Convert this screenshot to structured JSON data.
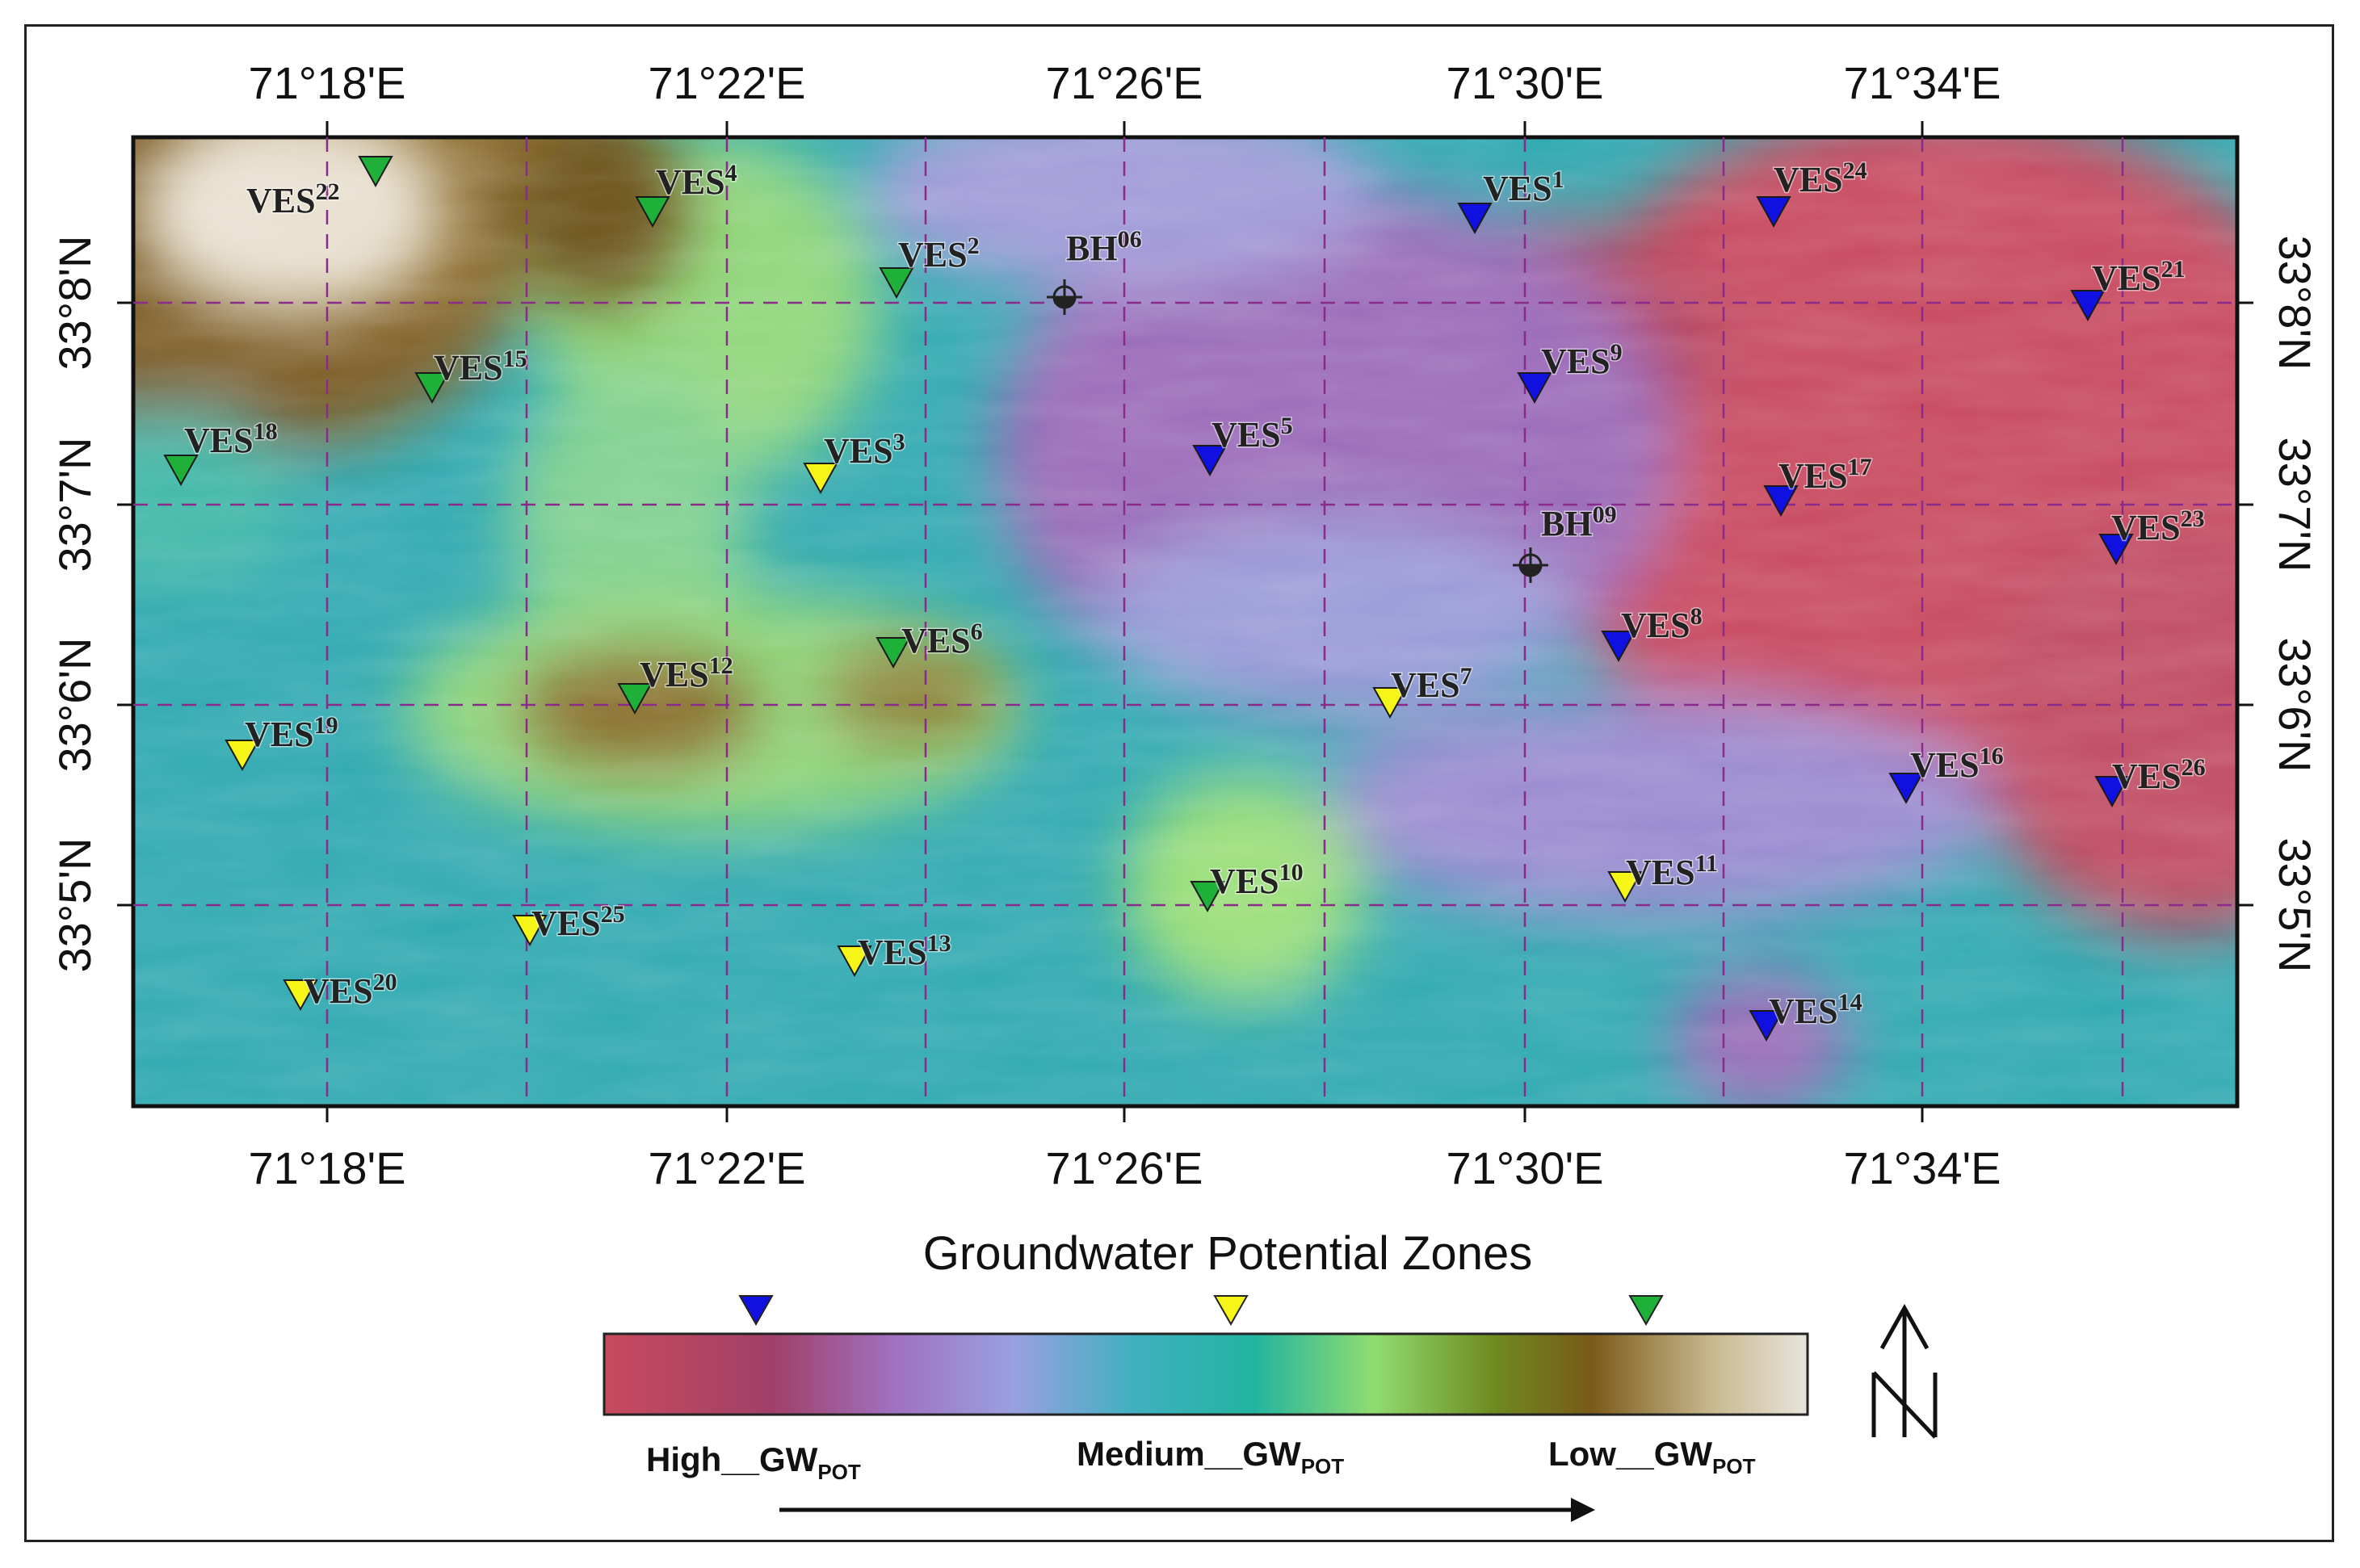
{
  "map": {
    "top_axis_labels": [
      "71°18'E",
      "71°22'E",
      "71°26'E",
      "71°30'E",
      "71°34'E"
    ],
    "bottom_axis_labels": [
      "71°18'E",
      "71°22'E",
      "71°26'E",
      "71°30'E",
      "71°34'E"
    ],
    "left_axis_labels": [
      "33°8'N",
      "33°7'N",
      "33°6'N",
      "33°5'N"
    ],
    "right_axis_labels": [
      "33°8'N",
      "33°7'N",
      "33°6'N",
      "33°5'N"
    ],
    "colors": {
      "high": "#c84a5e",
      "medium_high": "#9a7ac0",
      "medium": "#2fa9b0",
      "medium_low": "#8fd67a",
      "low": "#8a6a2a",
      "very_low": "#e8e0d0",
      "marker_high": "#1010e0",
      "marker_medium": "#f5f518",
      "marker_low": "#1fb03a",
      "grid": "#8a2a8a"
    },
    "stations": [
      {
        "name": "VES",
        "num": "22",
        "class": "low"
      },
      {
        "name": "VES",
        "num": "4",
        "class": "low"
      },
      {
        "name": "VES",
        "num": "2",
        "class": "low"
      },
      {
        "name": "BH",
        "num": "06",
        "class": "borehole"
      },
      {
        "name": "VES",
        "num": "1",
        "class": "high"
      },
      {
        "name": "VES",
        "num": "24",
        "class": "high"
      },
      {
        "name": "VES",
        "num": "21",
        "class": "high"
      },
      {
        "name": "VES",
        "num": "15",
        "class": "low"
      },
      {
        "name": "VES",
        "num": "9",
        "class": "high"
      },
      {
        "name": "VES",
        "num": "18",
        "class": "low"
      },
      {
        "name": "VES",
        "num": "3",
        "class": "medium"
      },
      {
        "name": "VES",
        "num": "5",
        "class": "high"
      },
      {
        "name": "VES",
        "num": "17",
        "class": "high"
      },
      {
        "name": "VES",
        "num": "23",
        "class": "high"
      },
      {
        "name": "BH",
        "num": "09",
        "class": "borehole"
      },
      {
        "name": "VES",
        "num": "8",
        "class": "high"
      },
      {
        "name": "VES",
        "num": "6",
        "class": "low"
      },
      {
        "name": "VES",
        "num": "12",
        "class": "low"
      },
      {
        "name": "VES",
        "num": "7",
        "class": "medium"
      },
      {
        "name": "VES",
        "num": "19",
        "class": "medium"
      },
      {
        "name": "VES",
        "num": "16",
        "class": "high"
      },
      {
        "name": "VES",
        "num": "26",
        "class": "high"
      },
      {
        "name": "VES",
        "num": "10",
        "class": "low"
      },
      {
        "name": "VES",
        "num": "11",
        "class": "medium"
      },
      {
        "name": "VES",
        "num": "25",
        "class": "medium"
      },
      {
        "name": "VES",
        "num": "13",
        "class": "medium"
      },
      {
        "name": "VES",
        "num": "20",
        "class": "medium"
      },
      {
        "name": "VES",
        "num": "14",
        "class": "high"
      }
    ]
  },
  "legend": {
    "title": "Groundwater Potential Zones",
    "high_label": "High__GW",
    "high_sub": "POT",
    "medium_label": "Medium__GW",
    "medium_sub": "POT",
    "low_label": "Low__GW",
    "low_sub": "POT"
  },
  "north_arrow": {
    "letter": "N"
  }
}
